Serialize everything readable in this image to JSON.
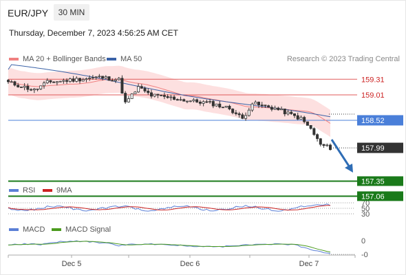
{
  "header": {
    "symbol": "EUR/JPY",
    "timeframe": "30 MIN",
    "timestamp": "Thursday, December 7, 2023 4:56:25 AM CET"
  },
  "legend": {
    "ma20": "MA 20 + Bollinger Bands",
    "ma50": "MA 50",
    "credit": "Research © 2023 Trading Central"
  },
  "levels": [
    {
      "value": 159.31,
      "label": "159.31",
      "kind": "resistance"
    },
    {
      "value": 159.01,
      "label": "159.01",
      "kind": "resistance"
    },
    {
      "value": 158.52,
      "label": "158.52",
      "kind": "pivot"
    },
    {
      "value": 157.99,
      "label": "157.99",
      "kind": "last-price"
    },
    {
      "value": 157.35,
      "label": "157.35",
      "kind": "support"
    },
    {
      "value": 157.06,
      "label": "157.06",
      "kind": "support"
    }
  ],
  "rsi": {
    "legend_rsi": "RSI",
    "legend_ma": "9MA",
    "levels": [
      "70",
      "50",
      "30"
    ]
  },
  "macd": {
    "legend_macd": "MACD",
    "legend_signal": "MACD Signal",
    "levels": [
      "0",
      "-0"
    ]
  },
  "xaxis": [
    "Dec 5",
    "Dec 6",
    "Dec 7"
  ],
  "colors": {
    "candle_up": "#ffffff",
    "candle_down": "#333333",
    "ma20": "#f08080",
    "ma50": "#3a62a7",
    "bollinger": "#fcd8d8",
    "resistance": "#e05a5a",
    "pivot": "#4a7fd9",
    "support": "#1a7a1a",
    "last_price": "#333333",
    "arrow": "#2f6db5",
    "rsi": "#5b7fd6",
    "rsi_ma": "#cc2222",
    "macd": "#5b7fd6",
    "macd_signal": "#4b9b1e"
  }
}
